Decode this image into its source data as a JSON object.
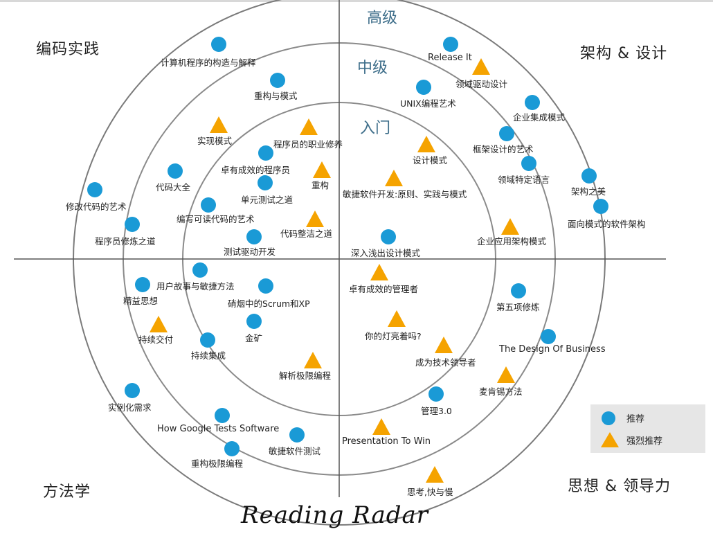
{
  "quadrants": {
    "top_left": "编码实践",
    "top_right": "架构 & 设计",
    "bottom_left": "方法学",
    "bottom_right": "思想 & 领导力"
  },
  "levels": {
    "outer": "高级",
    "middle": "中级",
    "inner": "入门"
  },
  "title": "Reading Radar",
  "legend": {
    "recommend": "推荐",
    "strong": "强烈推荐"
  },
  "colors": {
    "recommend": "#1a9ad6",
    "strong": "#f5a300",
    "circle": "#7a7a7a",
    "axis": "#555555"
  },
  "books": {
    "b1": "计算机程序的构造与解释",
    "b2": "重构与模式",
    "b3": "实现模式",
    "b4": "程序员的职业修养",
    "b5": "卓有成效的程序员",
    "b6": "重构",
    "b7": "代码大全",
    "b8": "单元测试之道",
    "b9": "修改代码的艺术",
    "b10": "编写可读代码的艺术",
    "b11": "代码整洁之道",
    "b12": "程序员修炼之道",
    "b13": "测试驱动开发",
    "b14": "Release It",
    "b15": "领域驱动设计",
    "b16": "UNIX编程艺术",
    "b17": "企业集成模式",
    "b18": "框架设计的艺术",
    "b19": "设计模式",
    "b20": "领域特定语言",
    "b21": "敏捷软件开发:原则、实践与模式",
    "b22": "架构之美",
    "b23": "面向模式的软件架构",
    "b24": "企业应用架构模式",
    "b25": "深入浅出设计模式",
    "b26": "用户故事与敏捷方法",
    "b27": "精益思想",
    "b28": "硝烟中的Scrum和XP",
    "b29": "持续交付",
    "b30": "金矿",
    "b31": "持续集成",
    "b32": "解析极限编程",
    "b33": "实例化需求",
    "b34": "How Google Tests Software",
    "b35": "敏捷软件测试",
    "b36": "重构极限编程",
    "b37": "卓有成效的管理者",
    "b38": "第五项修炼",
    "b39": "你的灯亮着吗?",
    "b40": "The Design Of Business",
    "b41": "成为技术领导者",
    "b42": "麦肯锡方法",
    "b43": "管理3.0",
    "b44": "Presentation To Win",
    "b45": "思考,快与慢"
  }
}
